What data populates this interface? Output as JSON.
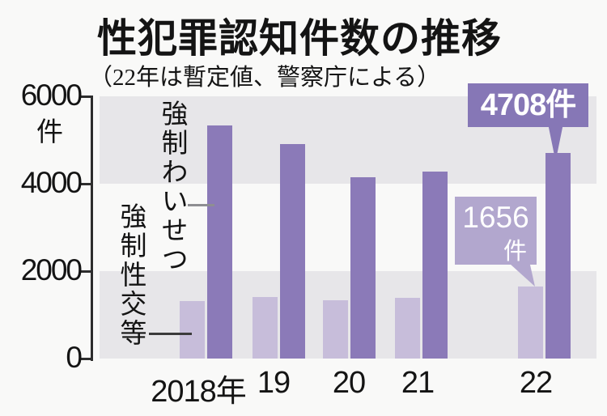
{
  "header": {
    "title": "性犯罪認知件数の推移",
    "subtitle": "（22年は暫定値、警察庁による）"
  },
  "axis": {
    "unit_label": "件"
  },
  "chart_data": {
    "type": "bar",
    "categories": [
      "2018年",
      "19",
      "20",
      "21",
      "22"
    ],
    "series": [
      {
        "name": "強制性交等",
        "key": "forcible-intercourse",
        "color": "#c7bdda",
        "values": [
          1307,
          1405,
          1332,
          1388,
          1656
        ]
      },
      {
        "name": "強制わいせつ",
        "key": "forcible-indecency",
        "color": "#8b7ab8",
        "values": [
          5340,
          4900,
          4154,
          4283,
          4708
        ]
      }
    ],
    "ylim": [
      0,
      6000
    ],
    "yticks": [
      6000,
      4000,
      2000,
      0
    ],
    "y_unit": "件",
    "grid": "alternating horizontal gray bands between ticks",
    "legend_position": "vertical in-plot labels at left",
    "annotations": [
      {
        "label": "4708件",
        "series": "強制わいせつ",
        "category": "22",
        "value": 4708
      },
      {
        "label_value": "1656",
        "label_unit": "件",
        "series": "強制性交等",
        "category": "22",
        "value": 1656
      }
    ]
  },
  "colors": {
    "dark_purple_bar": "#8b7ab8",
    "light_purple_bar": "#c7bdda",
    "callout_dark": "#8677b6",
    "callout_light": "#b2a7ce",
    "band_gray": "#e7e6e9",
    "background": "#f9f9f8",
    "axis_text": "#141414",
    "callout_text": "#ffffff"
  }
}
